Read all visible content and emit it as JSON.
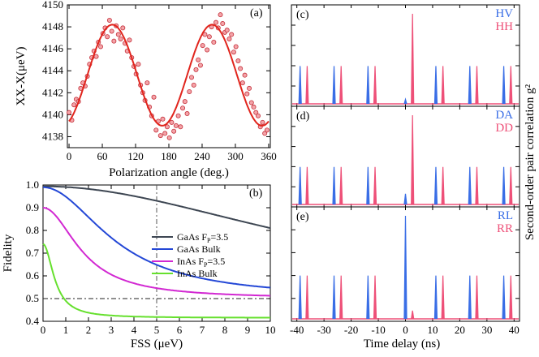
{
  "chart_data": [
    {
      "id": "a",
      "type": "scatter",
      "panel_label": "(a)",
      "xlabel": "Polarization angle (deg.)",
      "ylabel": "XX-X(μeV)",
      "xlim": [
        -3,
        363
      ],
      "ylim": [
        4137,
        4150
      ],
      "xticks": [
        "0",
        "60",
        "120",
        "180",
        "240",
        "300",
        "360"
      ],
      "yticks": [
        "4138",
        "4140",
        "4142",
        "4144",
        "4146",
        "4148",
        "4150"
      ],
      "fit": {
        "mean": 4143.6,
        "amplitude": 4.6,
        "phase_deg": 78,
        "period_deg": 180
      },
      "points": [
        [
          0,
          4140.2
        ],
        [
          5,
          4139.5
        ],
        [
          9,
          4140.9
        ],
        [
          13,
          4141.4
        ],
        [
          17,
          4141.2
        ],
        [
          21,
          4142.4
        ],
        [
          25,
          4142.9
        ],
        [
          29,
          4142.6
        ],
        [
          33,
          4143.5
        ],
        [
          37,
          4144.6
        ],
        [
          41,
          4145.2
        ],
        [
          45,
          4145.8
        ],
        [
          49,
          4145.3
        ],
        [
          53,
          4146.6
        ],
        [
          57,
          4146.2
        ],
        [
          61,
          4147.4
        ],
        [
          65,
          4147.9
        ],
        [
          69,
          4147.1
        ],
        [
          73,
          4148.6
        ],
        [
          77,
          4147.6
        ],
        [
          81,
          4146.7
        ],
        [
          85,
          4148.1
        ],
        [
          89,
          4147.3
        ],
        [
          93,
          4146.9
        ],
        [
          97,
          4147.9
        ],
        [
          101,
          4146.5
        ],
        [
          105,
          4145.8
        ],
        [
          109,
          4146.8
        ],
        [
          113,
          4145.2
        ],
        [
          117,
          4144.4
        ],
        [
          121,
          4143.7
        ],
        [
          125,
          4144.6
        ],
        [
          129,
          4142.7
        ],
        [
          133,
          4142.0
        ],
        [
          137,
          4141.3
        ],
        [
          141,
          4142.9
        ],
        [
          145,
          4140.7
        ],
        [
          149,
          4139.9
        ],
        [
          153,
          4141.6
        ],
        [
          157,
          4138.6
        ],
        [
          161,
          4139.4
        ],
        [
          165,
          4138.1
        ],
        [
          169,
          4139.6
        ],
        [
          173,
          4138.3
        ],
        [
          177,
          4138.9
        ],
        [
          181,
          4137.9
        ],
        [
          185,
          4139.3
        ],
        [
          189,
          4138.5
        ],
        [
          193,
          4139.0
        ],
        [
          197,
          4139.9
        ],
        [
          201,
          4138.9
        ],
        [
          205,
          4140.6
        ],
        [
          209,
          4141.2
        ],
        [
          213,
          4140.1
        ],
        [
          217,
          4142.1
        ],
        [
          221,
          4143.4
        ],
        [
          225,
          4142.7
        ],
        [
          229,
          4144.1
        ],
        [
          233,
          4145.0
        ],
        [
          237,
          4144.5
        ],
        [
          241,
          4146.3
        ],
        [
          245,
          4147.3
        ],
        [
          249,
          4145.9
        ],
        [
          253,
          4147.1
        ],
        [
          257,
          4148.0
        ],
        [
          261,
          4146.6
        ],
        [
          265,
          4148.4
        ],
        [
          269,
          4147.9
        ],
        [
          273,
          4149.1
        ],
        [
          277,
          4148.3
        ],
        [
          281,
          4147.5
        ],
        [
          285,
          4147.7
        ],
        [
          289,
          4146.9
        ],
        [
          293,
          4147.3
        ],
        [
          297,
          4145.7
        ],
        [
          301,
          4146.2
        ],
        [
          305,
          4144.9
        ],
        [
          309,
          4144.2
        ],
        [
          313,
          4142.9
        ],
        [
          317,
          4143.6
        ],
        [
          321,
          4141.9
        ],
        [
          325,
          4142.4
        ],
        [
          329,
          4141.1
        ],
        [
          333,
          4140.7
        ],
        [
          337,
          4140.2
        ],
        [
          341,
          4139.9
        ],
        [
          345,
          4138.9
        ],
        [
          349,
          4139.3
        ],
        [
          353,
          4138.3
        ],
        [
          357,
          4138.6
        ]
      ]
    },
    {
      "id": "b",
      "type": "line",
      "panel_label": "(b)",
      "xlabel": "FSS (μeV)",
      "ylabel": "Fidelity",
      "xlim": [
        0,
        10
      ],
      "ylim": [
        0.4,
        1.0
      ],
      "xticks": [
        "0",
        "1",
        "2",
        "3",
        "4",
        "5",
        "6",
        "7",
        "8",
        "9",
        "10"
      ],
      "yticks": [
        "0.4",
        "0.5",
        "0.6",
        "0.7",
        "0.8",
        "0.9",
        "1.0"
      ],
      "reference_lines": {
        "vertical_x": 5,
        "horizontal_y": 0.5
      },
      "series": [
        {
          "name": "GaAs F",
          "sub": "P",
          "suffix": "=3.5",
          "color": "#3d4652",
          "start": 0.994,
          "end": 0.5,
          "width": 13.0
        },
        {
          "name": "GaAs Bulk",
          "sub": "",
          "suffix": "",
          "color": "#2347d6",
          "start": 0.99,
          "end": 0.5,
          "width": 3.3
        },
        {
          "name": "InAs F",
          "sub": "P",
          "suffix": "=3.5",
          "color": "#d228d2",
          "start": 0.9,
          "end": 0.5,
          "width": 1.8
        },
        {
          "name": "InAs Bulk",
          "sub": "",
          "suffix": "",
          "color": "#66e02e",
          "start": 0.74,
          "end": 0.415,
          "width": 0.55
        }
      ]
    },
    {
      "id": "cde",
      "type": "line",
      "xlabel": "Time delay (ns)",
      "ylabel": "Second-order pair correlation g²",
      "xlim": [
        -42,
        42
      ],
      "xticks": [
        "-40",
        "-30",
        "-20",
        "-10",
        "0",
        "10",
        "20",
        "30",
        "40"
      ],
      "side_peak_times": [
        -37.5,
        -25,
        -12.5,
        12.5,
        25,
        37.5
      ],
      "side_peak_height": 0.42,
      "panels": [
        {
          "label": "(c)",
          "keys": [
            "HV",
            "HH"
          ],
          "blue_zero_peak": 0.05,
          "red_zero_peak": 1.0
        },
        {
          "label": "(d)",
          "keys": [
            "DA",
            "DD"
          ],
          "blue_zero_peak": 0.12,
          "red_zero_peak": 1.0
        },
        {
          "label": "(e)",
          "keys": [
            "RL",
            "RR"
          ],
          "blue_zero_peak": 1.0,
          "red_zero_peak": 0.08
        }
      ],
      "colors": {
        "blue": "#3a6ee6",
        "red": "#ee5078"
      }
    }
  ]
}
